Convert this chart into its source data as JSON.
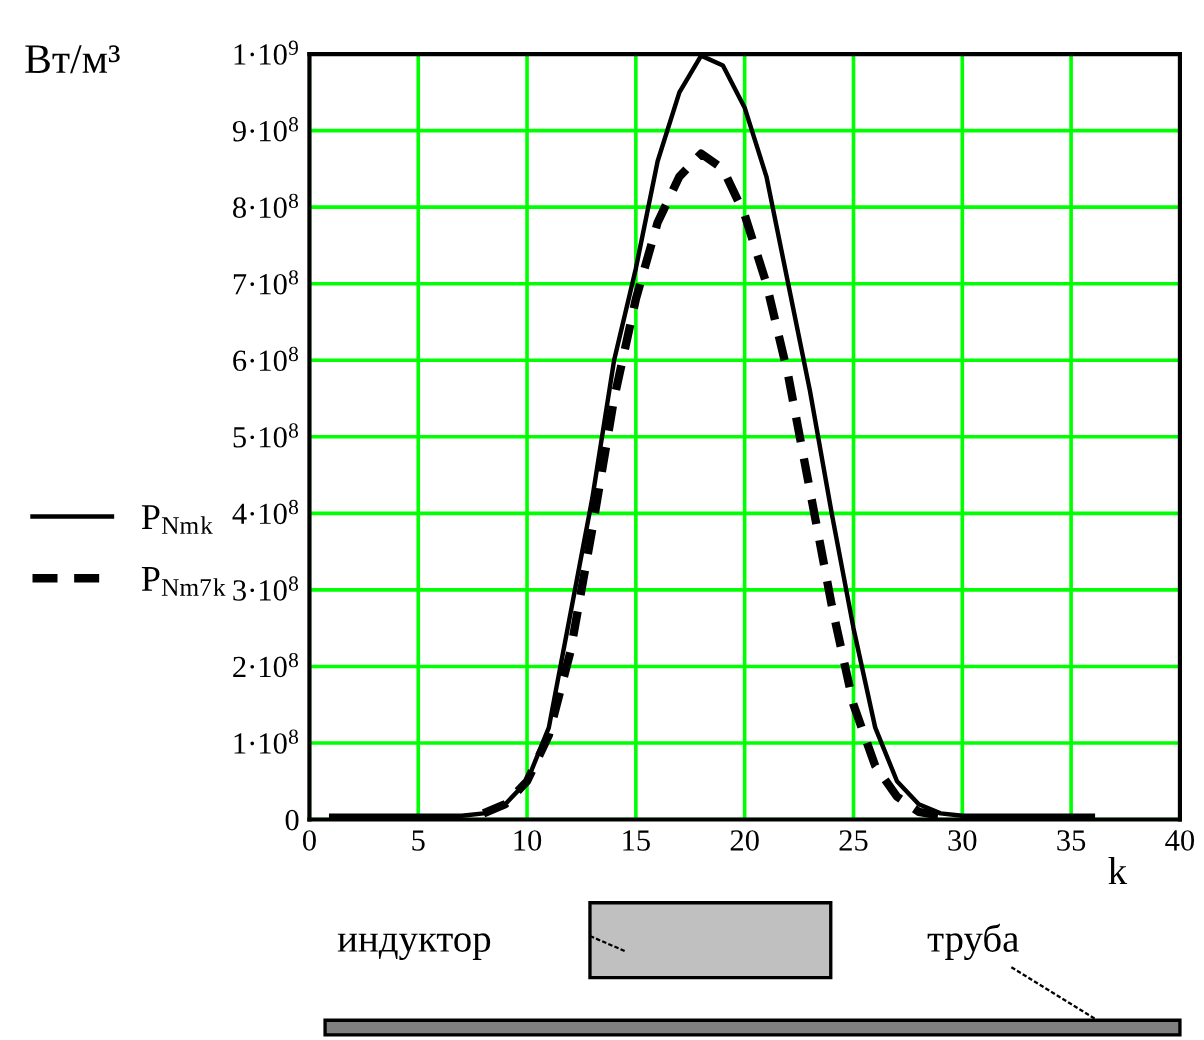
{
  "chart_data": {
    "type": "line",
    "ylabel": "Вт/м³",
    "xlabel": "k",
    "x": [
      1,
      2,
      3,
      4,
      5,
      6,
      7,
      8,
      9,
      10,
      11,
      12,
      13,
      14,
      15,
      16,
      17,
      18,
      19,
      20,
      21,
      22,
      23,
      24,
      25,
      26,
      27,
      28,
      29,
      30,
      31,
      32,
      33,
      34,
      35,
      36
    ],
    "series": [
      {
        "name": "P$_{Nm}$$_{k}$",
        "color": "#000000",
        "line_style": "solid",
        "values": [
          5000000,
          5000000,
          5000000,
          5000000,
          5000000,
          5000000,
          5000000,
          8000000,
          20000000,
          50000000,
          120000000,
          270000000,
          420000000,
          600000000,
          720000000,
          860000000,
          950000000,
          998000000,
          985000000,
          930000000,
          840000000,
          700000000,
          560000000,
          400000000,
          250000000,
          120000000,
          50000000,
          20000000,
          8000000,
          5000000,
          5000000,
          5000000,
          5000000,
          5000000,
          5000000,
          5000000
        ]
      },
      {
        "name": "P$_{Nm7}$$_{k}$",
        "color": "#000000",
        "line_style": "dashed",
        "values": [
          null,
          null,
          null,
          null,
          null,
          null,
          null,
          8000000,
          20000000,
          50000000,
          110000000,
          220000000,
          380000000,
          550000000,
          680000000,
          780000000,
          840000000,
          870000000,
          850000000,
          790000000,
          700000000,
          580000000,
          430000000,
          280000000,
          150000000,
          70000000,
          30000000,
          10000000,
          5000000,
          null,
          null,
          null,
          null,
          null,
          null,
          null
        ]
      }
    ],
    "xlim": [
      0,
      40
    ],
    "xticks": [
      0,
      5,
      10,
      15,
      20,
      25,
      30,
      35,
      40
    ],
    "ylim": [
      0,
      1000000000
    ],
    "yticks": [
      0,
      {
        "value": 100000000,
        "label": "1·10$^{8}$"
      },
      {
        "value": 200000000,
        "label": "2·10$^{8}$"
      },
      {
        "value": 300000000,
        "label": "3·10$^{8}$"
      },
      {
        "value": 400000000,
        "label": "4·10$^{8}$"
      },
      {
        "value": 500000000,
        "label": "5·10$^{8}$"
      },
      {
        "value": 600000000,
        "label": "6·10$^{8}$"
      },
      {
        "value": 700000000,
        "label": "7·10$^{8}$"
      },
      {
        "value": 800000000,
        "label": "8·10$^{8}$"
      },
      {
        "value": 900000000,
        "label": "9·10$^{8}$"
      },
      {
        "value": 1000000000,
        "label": "1·10$^{9}$"
      }
    ],
    "grid": true,
    "legend": "left",
    "marker": "none",
    "annotations": [
      "индуктор",
      "труба"
    ]
  }
}
